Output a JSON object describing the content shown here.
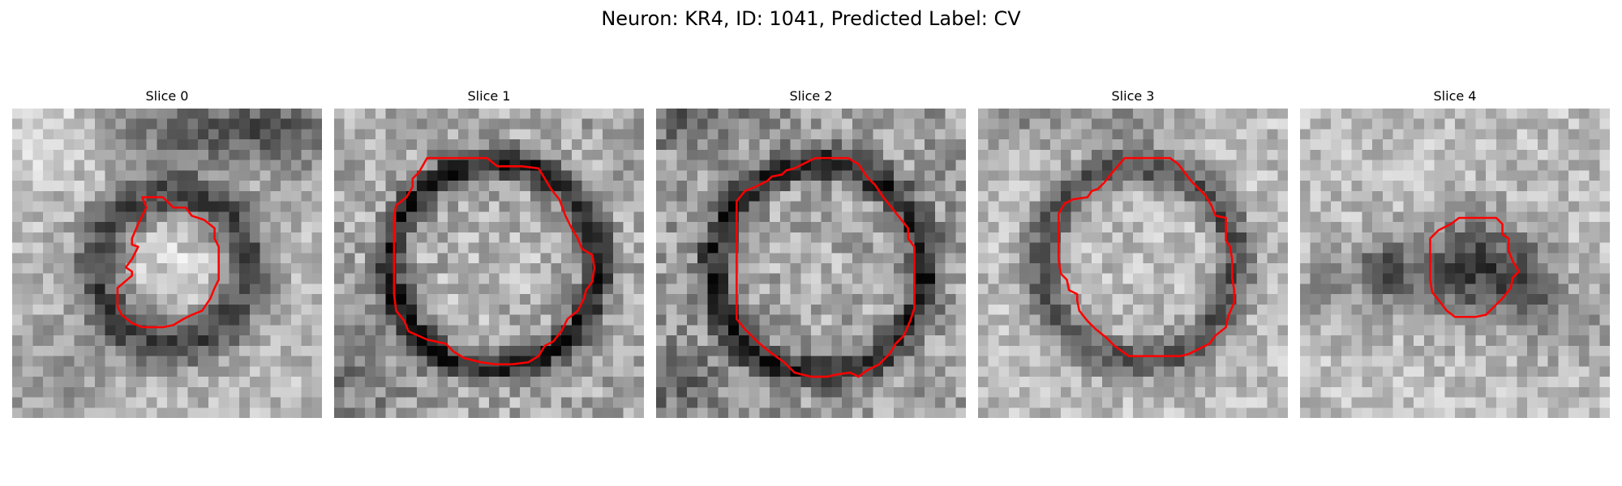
{
  "figure": {
    "title": "Neuron: KR4, ID: 1041, Predicted Label: CV"
  },
  "colors": {
    "contour": "#ff0000",
    "background": "#ffffff"
  },
  "panels": [
    {
      "title": "Slice 0"
    },
    {
      "title": "Slice 1"
    },
    {
      "title": "Slice 2"
    },
    {
      "title": "Slice 3"
    },
    {
      "title": "Slice 4"
    }
  ]
}
